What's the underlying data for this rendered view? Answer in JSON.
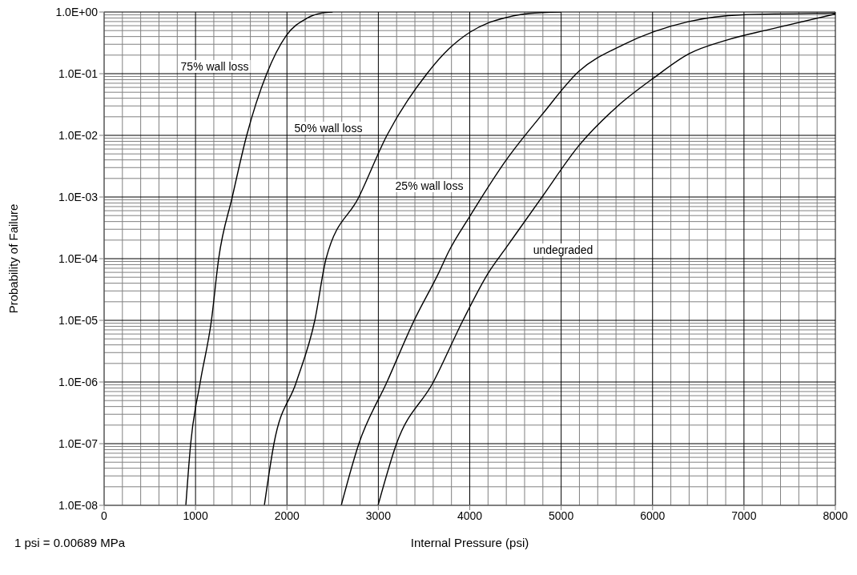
{
  "chart_data": {
    "type": "line",
    "xlabel": "Internal Pressure (psi)",
    "ylabel": "Probability of Failure",
    "log": "y",
    "grid": true,
    "line_style": "solid",
    "xlim": [
      0,
      8000
    ],
    "xticks": [
      0,
      1000,
      2000,
      3000,
      4000,
      5000,
      6000,
      7000,
      8000
    ],
    "ylim": [
      1e-08,
      1
    ],
    "yticks": [
      {
        "value": 1e-08,
        "label": "1.0E-08"
      },
      {
        "value": 1e-07,
        "label": "1.0E-07"
      },
      {
        "value": 1e-06,
        "label": "1.0E-06"
      },
      {
        "value": 1e-05,
        "label": "1.0E-05"
      },
      {
        "value": 0.0001,
        "label": "1.0E-04"
      },
      {
        "value": 0.001,
        "label": "1.0E-03"
      },
      {
        "value": 0.01,
        "label": "1.0E-02"
      },
      {
        "value": 0.1,
        "label": "1.0E-01"
      },
      {
        "value": 1,
        "label": "1.0E+00"
      }
    ],
    "series": [
      {
        "color": "#000000",
        "x": [
          894,
          947,
          1052,
          1174,
          1253,
          1402,
          1560,
          1779,
          1990,
          2217,
          2393,
          2500
        ],
        "values": [
          1e-08,
          1e-07,
          1e-06,
          1e-05,
          0.0001,
          0.001,
          0.01,
          0.1,
          0.41,
          0.79,
          0.97,
          1
        ]
      },
      {
        "color": "#000000",
        "x": [
          1753,
          1858,
          2103,
          2305,
          2428,
          2787,
          3094,
          3532,
          3769,
          4002,
          4207,
          4408,
          4645,
          5000
        ],
        "values": [
          1e-08,
          1e-07,
          1e-06,
          1e-05,
          0.0001,
          0.001,
          0.01,
          0.1,
          0.25,
          0.47,
          0.67,
          0.82,
          0.95,
          1
        ]
      },
      {
        "color": "#000000",
        "x": [
          2594,
          2787,
          3094,
          3392,
          3663,
          3769,
          4002,
          4400,
          4794,
          5197,
          5670,
          6398,
          6985,
          8000
        ],
        "values": [
          1e-08,
          1e-07,
          1e-06,
          1e-05,
          6e-05,
          0.00013,
          0.00049,
          0.004,
          0.022,
          0.11,
          0.29,
          0.7,
          0.9,
          0.96
        ]
      },
      {
        "color": "#000000",
        "x": [
          2997,
          3199,
          3602,
          3926,
          4207,
          4397,
          4791,
          5197,
          5609,
          6021,
          6398,
          6810,
          7274,
          8000
        ],
        "values": [
          1e-08,
          1e-07,
          1e-06,
          1e-05,
          6e-05,
          0.00015,
          0.001,
          0.0069,
          0.029,
          0.087,
          0.21,
          0.35,
          0.52,
          0.93
        ]
      }
    ],
    "annotations": [
      "75% wall loss",
      "50% wall loss",
      "25% wall loss",
      "undegraded",
      "1 psi = 0.00689 MPa"
    ]
  }
}
